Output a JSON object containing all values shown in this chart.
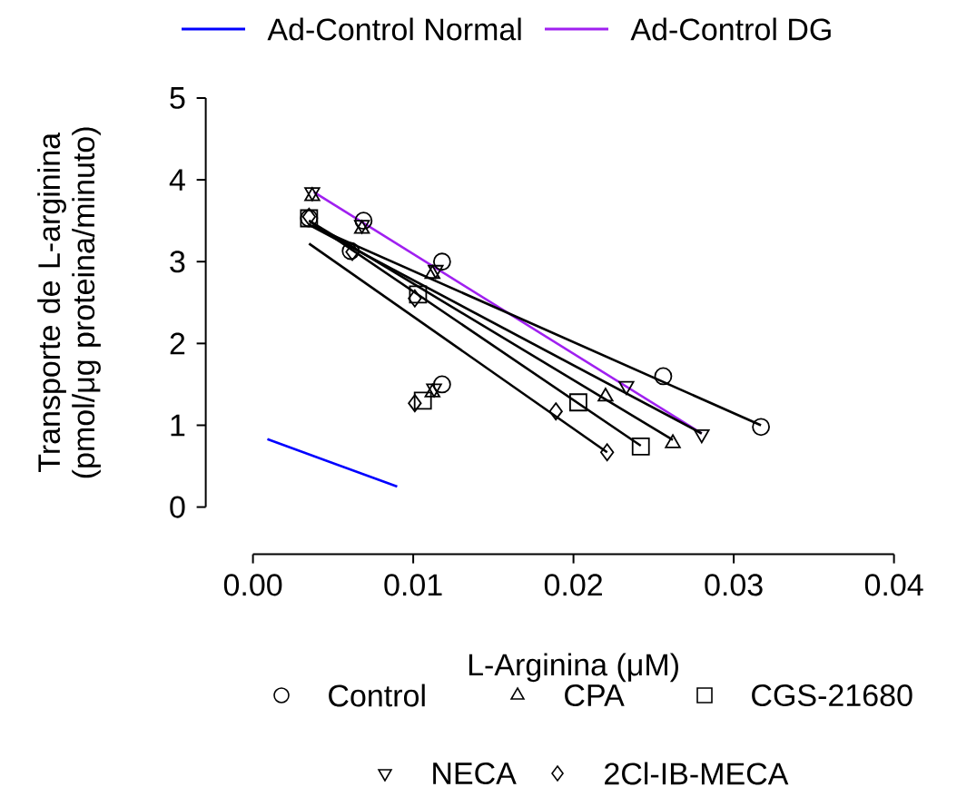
{
  "chart_data": {
    "type": "scatter",
    "xlabel": "L-Arginina (μM)",
    "ylabel": "Transporte de L-arginina (pmol/μg proteina/minuto)",
    "xlim": [
      0,
      0.04
    ],
    "ylim": [
      0,
      5
    ],
    "xticks": [
      {
        "value": 0,
        "label": "0.00"
      },
      {
        "value": 0.01,
        "label": "0.01"
      },
      {
        "value": 0.02,
        "label": "0.02"
      },
      {
        "value": 0.03,
        "label": "0.03"
      },
      {
        "value": 0.04,
        "label": "0.04"
      }
    ],
    "yticks": [
      0,
      1,
      2,
      3,
      4,
      5
    ],
    "legend": "bottom",
    "series": [
      {
        "name": "Ad-Control Normal",
        "type": "line",
        "color": "#0000ff",
        "x": [
          0.0009,
          0.009
        ],
        "values": [
          0.83,
          0.25
        ]
      },
      {
        "name": "Ad-Control DG",
        "type": "line",
        "color": "#a020f0",
        "x": [
          0.0038,
          0.028
        ],
        "values": [
          3.85,
          0.9
        ]
      },
      {
        "type": "line",
        "color": "#000000",
        "x": [
          0.0035,
          0.0317
        ],
        "values": [
          3.45,
          1.0
        ]
      },
      {
        "type": "line",
        "color": "#000000",
        "x": [
          0.0035,
          0.0262
        ],
        "values": [
          3.5,
          0.82
        ]
      },
      {
        "type": "line",
        "color": "#000000",
        "x": [
          0.0035,
          0.0242
        ],
        "values": [
          3.5,
          0.75
        ]
      },
      {
        "type": "line",
        "color": "#000000",
        "x": [
          0.0035,
          0.028
        ],
        "values": [
          3.45,
          0.9
        ]
      },
      {
        "type": "line",
        "color": "#000000",
        "x": [
          0.0035,
          0.0221
        ],
        "values": [
          3.22,
          0.67
        ]
      },
      {
        "name": "Control",
        "type": "scatter",
        "marker": "circle",
        "color": "#000000",
        "x": [
          0.0035,
          0.0061,
          0.0069,
          0.0118,
          0.0118,
          0.0256,
          0.0317
        ],
        "values": [
          3.53,
          3.13,
          3.5,
          3.0,
          1.5,
          1.6,
          0.98
        ]
      },
      {
        "name": "CPA",
        "type": "scatter",
        "marker": "triangle",
        "color": "#000000",
        "x": [
          0.0037,
          0.0068,
          0.0112,
          0.0112,
          0.022,
          0.0262
        ],
        "values": [
          3.8,
          3.4,
          2.85,
          1.4,
          1.35,
          0.78
        ]
      },
      {
        "name": "CGS-21680",
        "type": "scatter",
        "marker": "square",
        "color": "#000000",
        "x": [
          0.0035,
          0.0103,
          0.0106,
          0.0203,
          0.0242
        ],
        "values": [
          3.53,
          2.6,
          1.3,
          1.28,
          0.74
        ]
      },
      {
        "name": "NECA",
        "type": "scatter",
        "marker": "triangle-down",
        "color": "#000000",
        "x": [
          0.0037,
          0.0068,
          0.0114,
          0.0113,
          0.0233,
          0.028
        ],
        "values": [
          3.85,
          3.45,
          2.9,
          1.45,
          1.48,
          0.89
        ]
      },
      {
        "name": "2Cl-IB-MECA",
        "type": "scatter",
        "marker": "diamond",
        "color": "#000000",
        "x": [
          0.0035,
          0.0062,
          0.0101,
          0.0101,
          0.0189,
          0.0221
        ],
        "values": [
          3.55,
          3.12,
          2.55,
          1.27,
          1.17,
          0.67
        ]
      }
    ]
  }
}
